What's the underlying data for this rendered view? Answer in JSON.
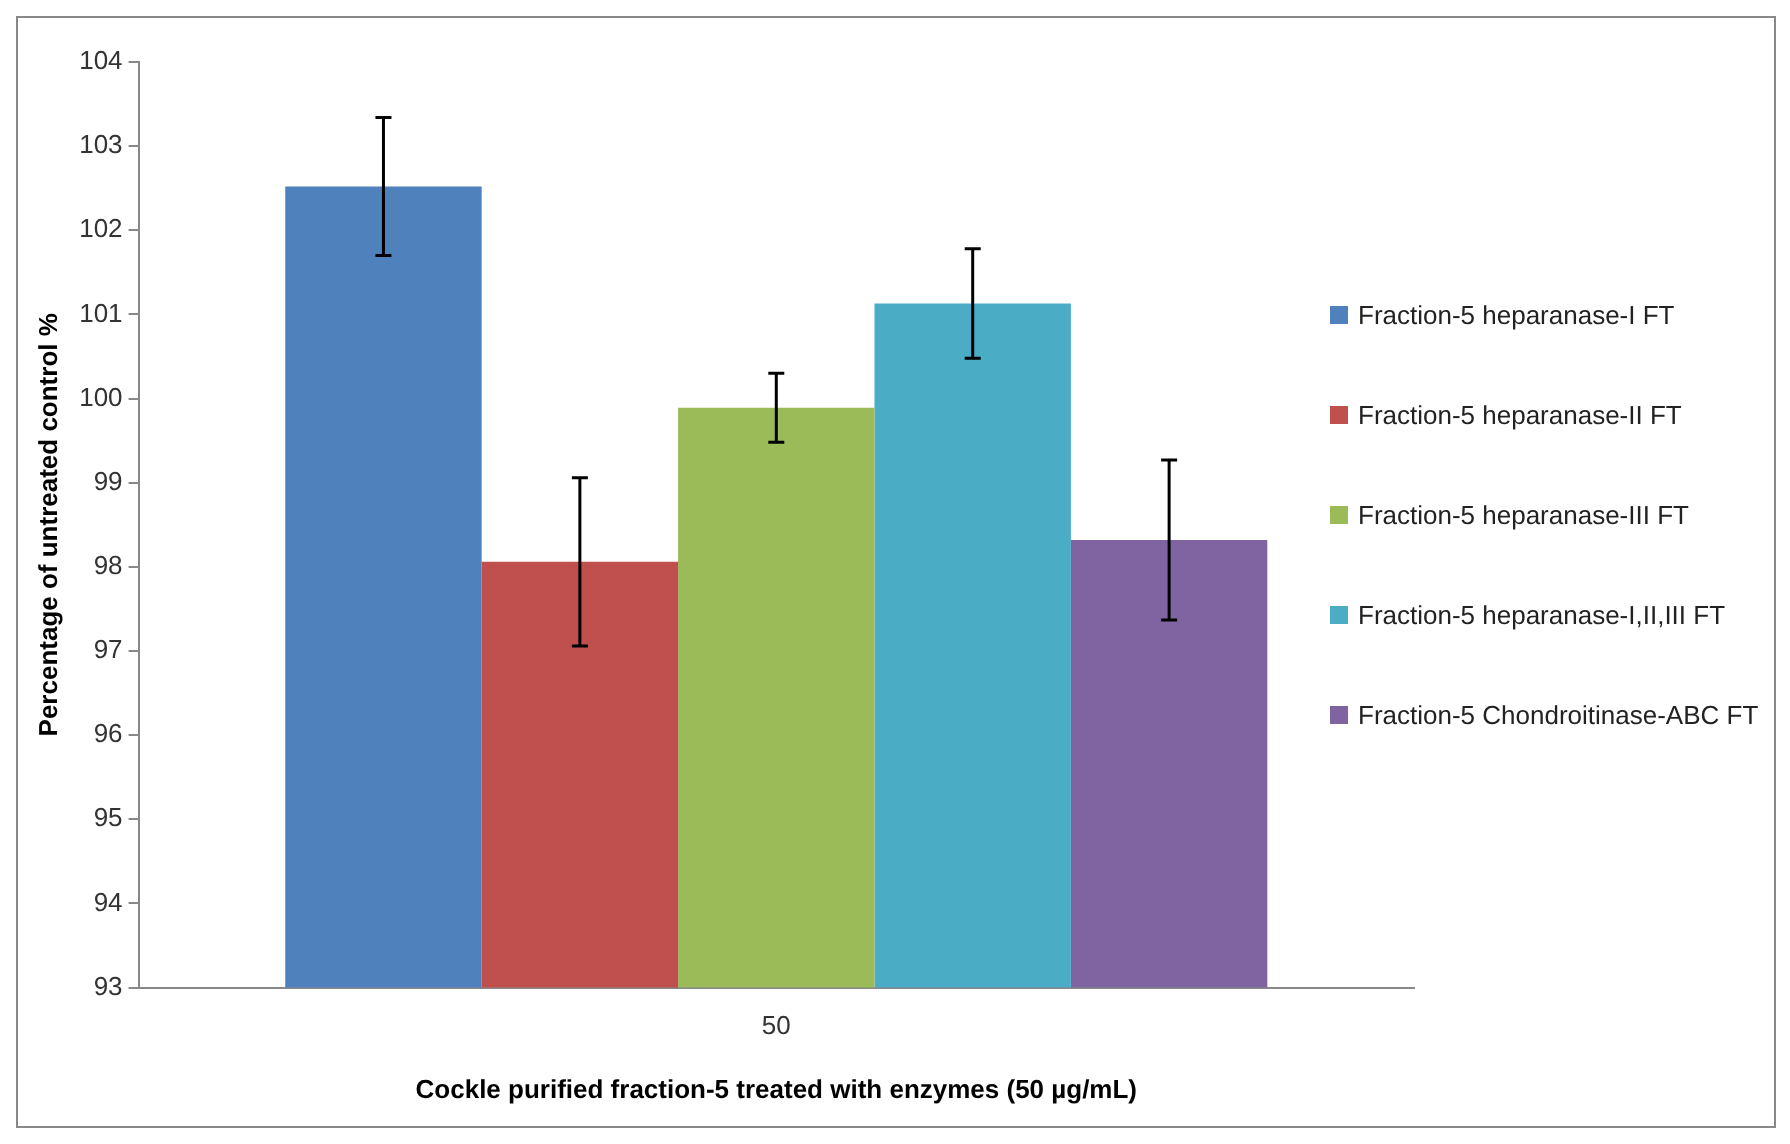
{
  "chart_data": {
    "type": "bar",
    "xlabel": "Cockle purified fraction-5 treated with enzymes (50 µg/mL)",
    "ylabel": "Percentage of untreated control %",
    "categories": [
      "50"
    ],
    "ylim": [
      93,
      104
    ],
    "yticks": [
      93,
      94,
      95,
      96,
      97,
      98,
      99,
      100,
      101,
      102,
      103,
      104
    ],
    "grid": false,
    "legend": "right",
    "series": [
      {
        "name": "Fraction-5 heparanase-I FT",
        "color": "#4f81bd",
        "values": [
          102.52
        ],
        "errors": [
          0.82
        ]
      },
      {
        "name": "Fraction-5 heparanase-II FT",
        "color": "#c0504d",
        "values": [
          98.06
        ],
        "errors": [
          1.0
        ]
      },
      {
        "name": "Fraction-5 heparanase-III FT",
        "color": "#9bbb59",
        "values": [
          99.89
        ],
        "errors": [
          0.41
        ]
      },
      {
        "name": "Fraction-5 heparanase-I,II,III FT",
        "color": "#4bacc6",
        "values": [
          101.13
        ],
        "errors": [
          0.65
        ]
      },
      {
        "name": "Fraction-5 Chondroitinase-ABC FT",
        "color": "#8064a2",
        "values": [
          98.32
        ],
        "errors": [
          0.95
        ]
      }
    ]
  }
}
